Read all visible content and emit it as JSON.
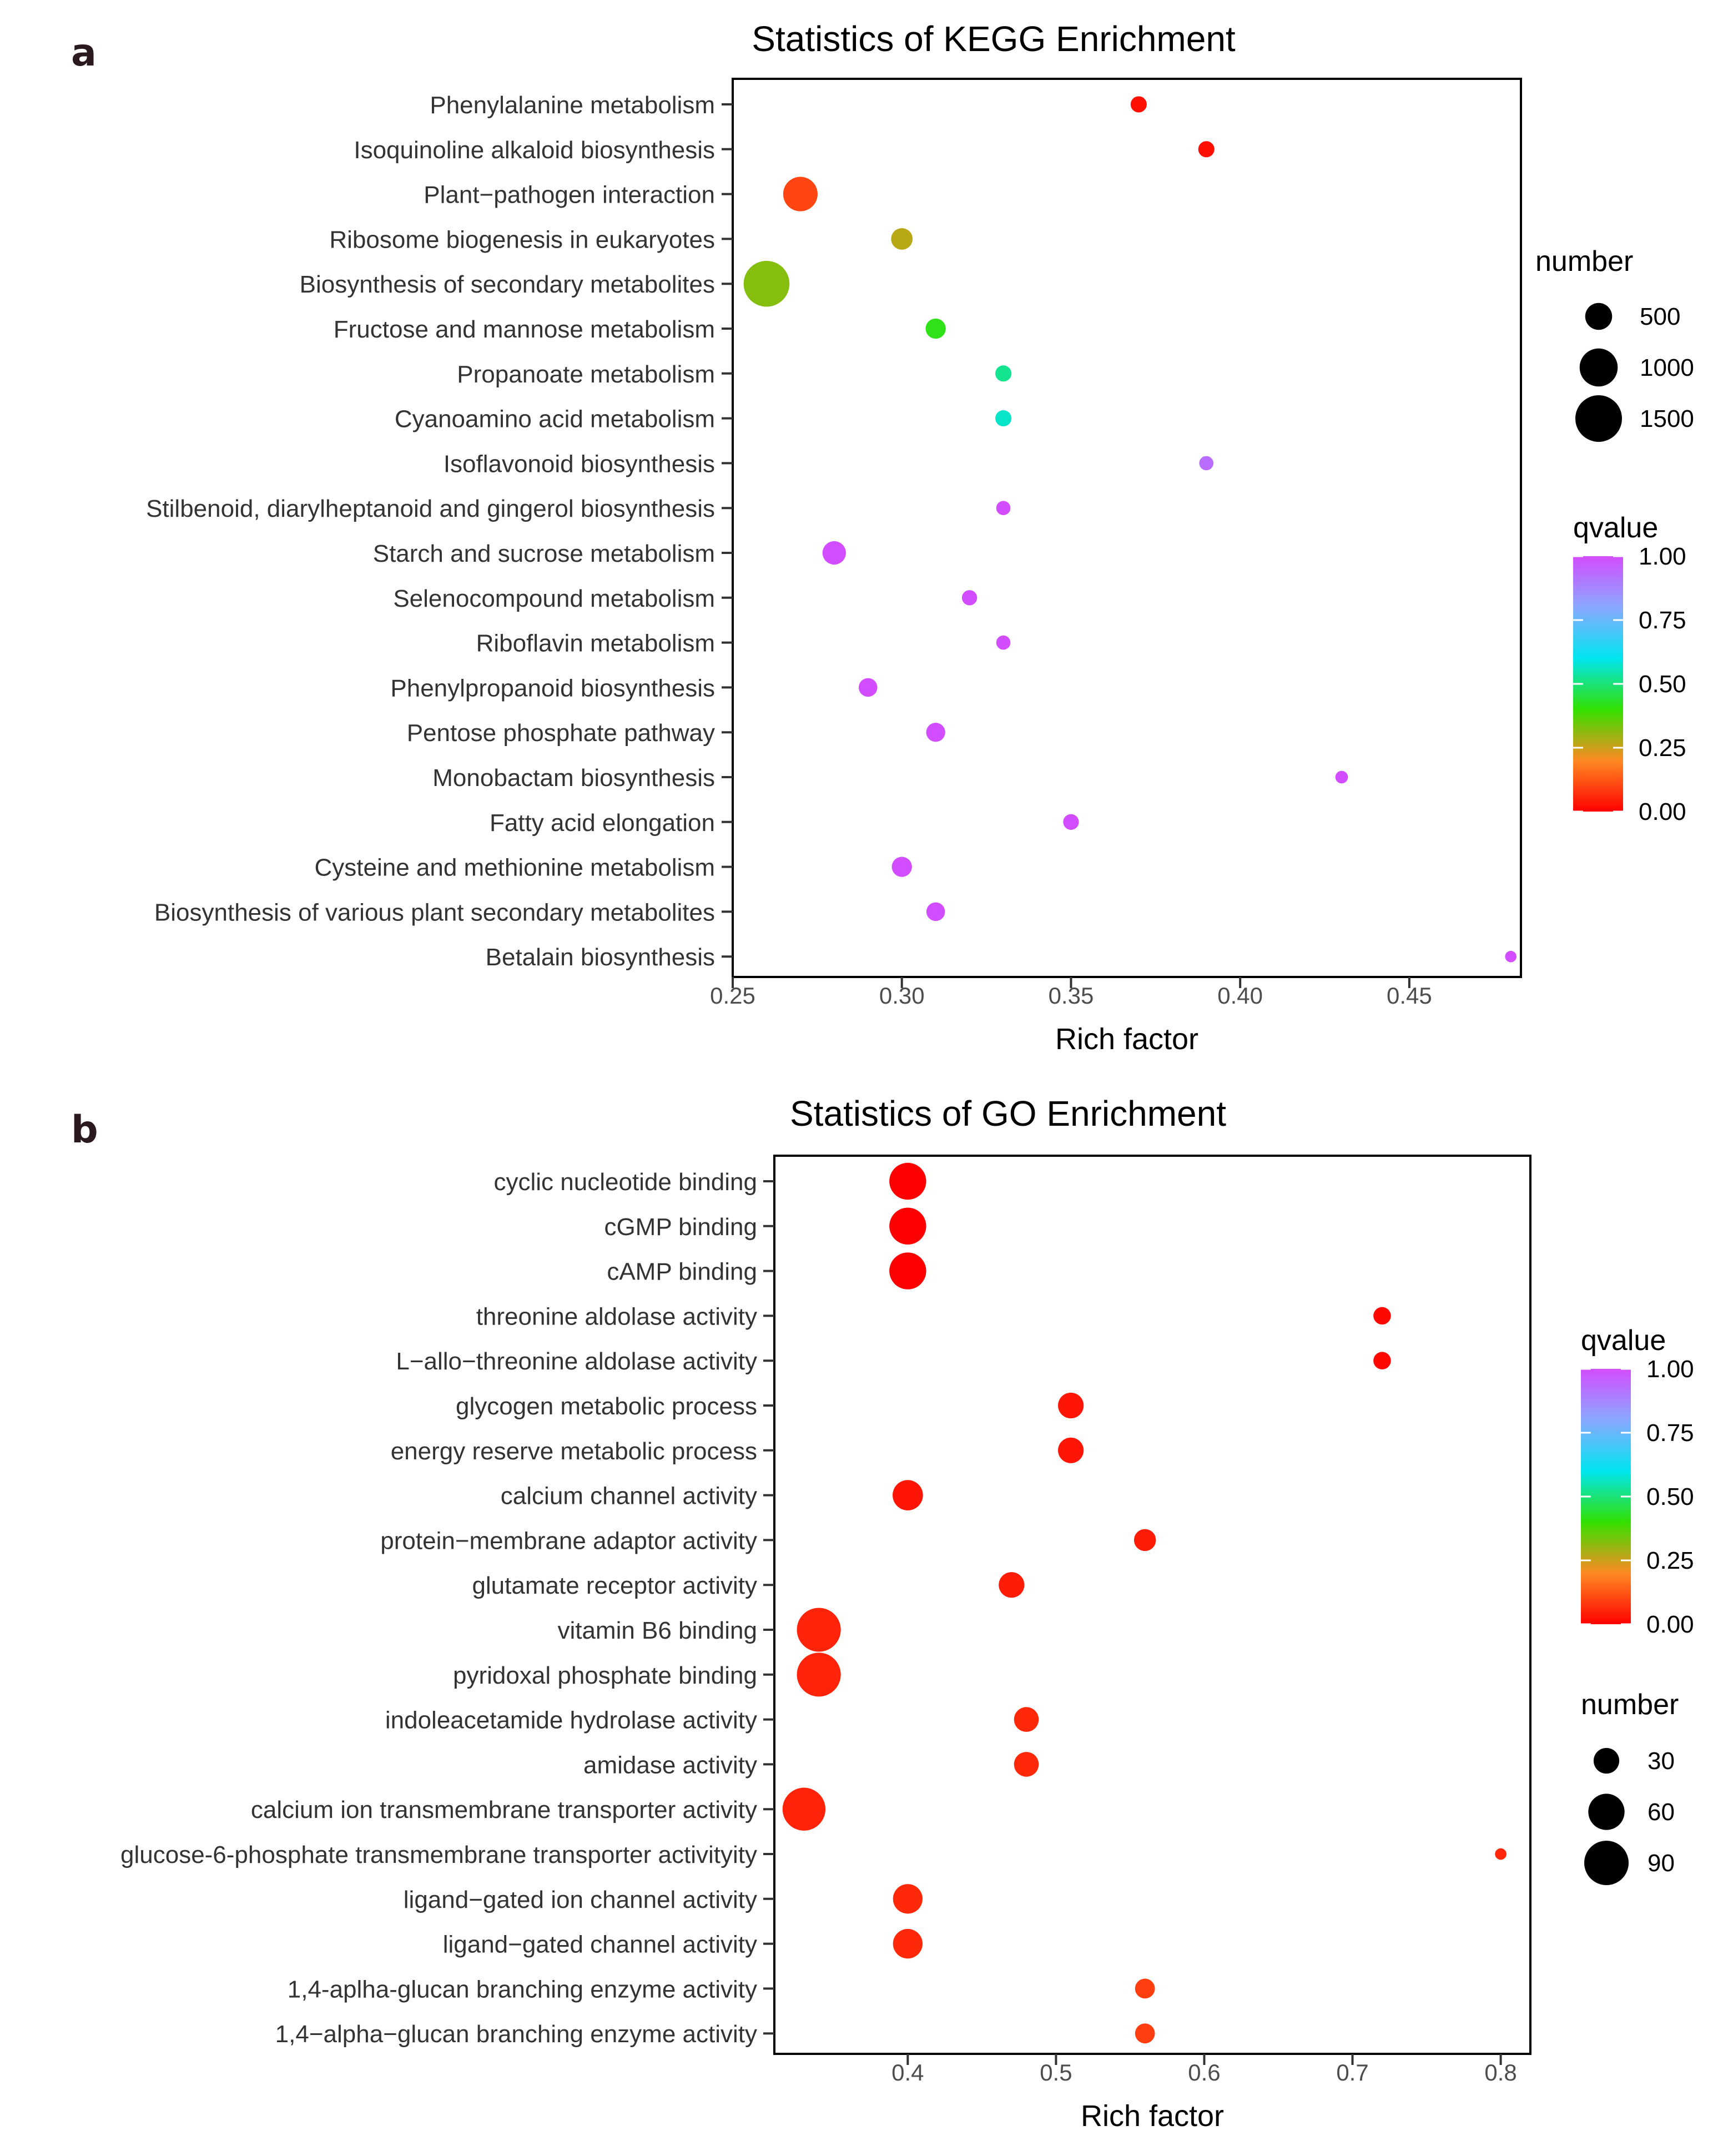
{
  "panels": [
    {
      "letter": "a",
      "legend_order": [
        "size",
        "color"
      ],
      "size_legend": {
        "title": "number",
        "values": [
          500,
          1000,
          1500
        ],
        "labels": [
          "500",
          "1000",
          "1500"
        ]
      },
      "color_legend": {
        "title": "qvalue",
        "ticks": [
          "1.00",
          "0.75",
          "0.50",
          "0.25",
          "0.00"
        ]
      }
    },
    {
      "letter": "b",
      "legend_order": [
        "color",
        "size"
      ],
      "size_legend": {
        "title": "number",
        "values": [
          30,
          60,
          90
        ],
        "labels": [
          "30",
          "60",
          "90"
        ]
      },
      "color_legend": {
        "title": "qvalue",
        "ticks": [
          "1.00",
          "0.75",
          "0.50",
          "0.25",
          "0.00"
        ]
      }
    }
  ],
  "colors": {
    "qvalue_gradient": [
      "#ff0000",
      "#ff8a22",
      "#33e000",
      "#00e5ee",
      "#8aa8ff",
      "#d24dff"
    ]
  },
  "chart_data": [
    {
      "type": "scatter",
      "title": "Statistics of KEGG Enrichment",
      "xlabel": "Rich factor",
      "ylabel": "",
      "xlim": [
        0.25,
        0.483
      ],
      "xticks": [
        0.25,
        0.3,
        0.35,
        0.4,
        0.45
      ],
      "xtick_labels": [
        "0.25",
        "0.30",
        "0.35",
        "0.40",
        "0.45"
      ],
      "size_max_number": 1500,
      "categories": [
        "Phenylalanine metabolism",
        "Isoquinoline alkaloid biosynthesis",
        "Plant−pathogen interaction",
        "Ribosome biogenesis in eukaryotes",
        "Biosynthesis of secondary metabolites",
        "Fructose and mannose metabolism",
        "Propanoate metabolism",
        "Cyanoamino acid metabolism",
        "Isoflavonoid biosynthesis",
        "Stilbenoid, diarylheptanoid and gingerol biosynthesis",
        "Starch and sucrose metabolism",
        "Selenocompound metabolism",
        "Riboflavin metabolism",
        "Phenylpropanoid biosynthesis",
        "Pentose phosphate pathway",
        "Monobactam biosynthesis",
        "Fatty acid elongation",
        "Cysteine and methionine metabolism",
        "Biosynthesis of various plant secondary metabolites",
        "Betalain biosynthesis"
      ],
      "rich_factor": [
        0.37,
        0.39,
        0.27,
        0.3,
        0.26,
        0.31,
        0.33,
        0.33,
        0.39,
        0.33,
        0.28,
        0.32,
        0.33,
        0.29,
        0.31,
        0.43,
        0.35,
        0.3,
        0.31,
        0.48
      ],
      "number": [
        180,
        180,
        820,
        320,
        1450,
        280,
        180,
        180,
        140,
        140,
        380,
        160,
        140,
        240,
        250,
        110,
        170,
        280,
        240,
        90
      ],
      "qvalue": [
        0.02,
        0.02,
        0.1,
        0.27,
        0.32,
        0.42,
        0.52,
        0.57,
        0.93,
        1.0,
        1.0,
        1.0,
        1.0,
        1.0,
        1.0,
        1.0,
        1.0,
        1.0,
        1.0,
        1.0
      ]
    },
    {
      "type": "scatter",
      "title": "Statistics of GO Enrichment",
      "xlabel": "Rich factor",
      "ylabel": "",
      "xlim": [
        0.31,
        0.82
      ],
      "xticks": [
        0.4,
        0.5,
        0.6,
        0.7,
        0.8
      ],
      "xtick_labels": [
        "0.4",
        "0.5",
        "0.6",
        "0.7",
        "0.8"
      ],
      "size_max_number": 90,
      "categories": [
        "cyclic nucleotide binding",
        "cGMP binding",
        "cAMP binding",
        "threonine aldolase activity",
        "L−allo−threonine aldolase activity",
        "glycogen metabolic process",
        "energy reserve metabolic process",
        "calcium channel activity",
        "protein−membrane adaptor activity",
        "glutamate receptor activity",
        "vitamin B6 binding",
        "pyridoxal phosphate binding",
        "indoleacetamide hydrolase activity",
        "amidase activity",
        "calcium ion transmembrane transporter activity",
        "glucose-6-phosphate transmembrane transporter activityity",
        "ligand−gated ion channel activity",
        "ligand−gated channel activity",
        "1,4-aplha-glucan branching enzyme activity",
        "1,4−alpha−glucan branching enzyme activity"
      ],
      "rich_factor": [
        0.4,
        0.4,
        0.4,
        0.72,
        0.72,
        0.51,
        0.51,
        0.4,
        0.56,
        0.47,
        0.34,
        0.34,
        0.48,
        0.48,
        0.33,
        0.8,
        0.4,
        0.4,
        0.56,
        0.56
      ],
      "number": [
        62,
        62,
        62,
        14,
        14,
        30,
        30,
        42,
        22,
        30,
        88,
        88,
        28,
        28,
        84,
        6,
        40,
        40,
        18,
        18
      ],
      "qvalue": [
        0.0,
        0.0,
        0.0,
        0.01,
        0.01,
        0.03,
        0.03,
        0.03,
        0.04,
        0.04,
        0.05,
        0.05,
        0.06,
        0.06,
        0.05,
        0.06,
        0.06,
        0.06,
        0.09,
        0.09
      ]
    }
  ]
}
